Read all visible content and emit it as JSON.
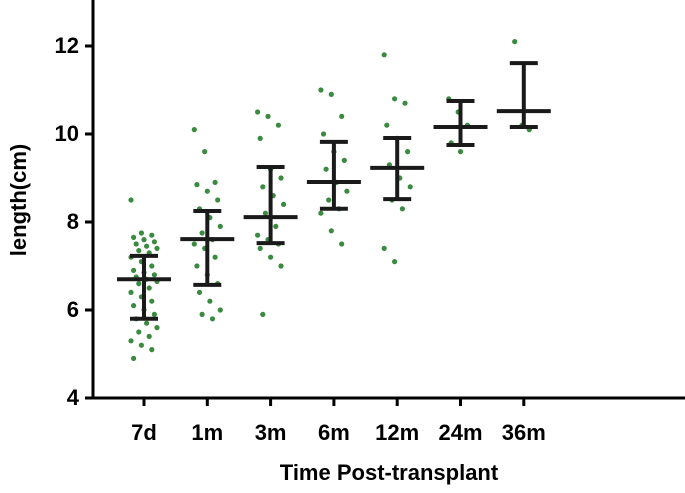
{
  "chart_data": {
    "type": "dot-plot",
    "x_label": "Time Post-transplant",
    "y_label": "length(cm)",
    "ylim": [
      4,
      13
    ],
    "yticks": [
      4,
      6,
      8,
      10,
      12
    ],
    "point_color": "#3a8a3f",
    "bar_color": "#1a1a1a",
    "groups": [
      {
        "name": "7d",
        "center": 6.7,
        "upper": 7.23,
        "lower": 5.8,
        "points": [
          8.5,
          7.75,
          7.7,
          7.65,
          7.6,
          7.55,
          7.5,
          7.45,
          7.4,
          7.35,
          7.3,
          7.2,
          7.1,
          7.0,
          6.9,
          6.85,
          6.8,
          6.75,
          6.7,
          6.65,
          6.6,
          6.5,
          6.4,
          6.3,
          6.2,
          6.1,
          6.0,
          5.9,
          5.8,
          5.7,
          5.6,
          5.5,
          5.4,
          5.3,
          5.2,
          5.1,
          4.9
        ]
      },
      {
        "name": "1m",
        "center": 7.61,
        "upper": 8.25,
        "lower": 6.57,
        "points": [
          10.1,
          9.6,
          8.9,
          8.85,
          8.7,
          8.5,
          8.3,
          8.1,
          7.9,
          7.75,
          7.6,
          7.5,
          7.4,
          7.2,
          7.0,
          6.8,
          6.6,
          6.4,
          6.2,
          6.0,
          5.9,
          5.8
        ]
      },
      {
        "name": "3m",
        "center": 8.11,
        "upper": 9.25,
        "lower": 7.52,
        "points": [
          10.5,
          10.4,
          10.2,
          9.9,
          9.2,
          9.0,
          8.8,
          8.6,
          8.4,
          8.2,
          7.9,
          7.7,
          7.6,
          7.5,
          7.4,
          7.2,
          7.0,
          5.9
        ]
      },
      {
        "name": "6m",
        "center": 8.91,
        "upper": 9.82,
        "lower": 8.3,
        "points": [
          11.0,
          10.9,
          10.4,
          10.0,
          9.6,
          9.4,
          9.2,
          8.9,
          8.7,
          8.5,
          8.3,
          8.2,
          7.8,
          7.5
        ]
      },
      {
        "name": "12m",
        "center": 9.23,
        "upper": 9.91,
        "lower": 8.52,
        "points": [
          11.8,
          10.8,
          10.7,
          10.2,
          9.9,
          9.6,
          9.3,
          9.0,
          8.8,
          8.5,
          8.3,
          7.4,
          7.1
        ]
      },
      {
        "name": "24m",
        "center": 10.16,
        "upper": 10.75,
        "lower": 9.75,
        "points": [
          10.8,
          10.5,
          10.2,
          9.8,
          9.6
        ]
      },
      {
        "name": "36m",
        "center": 10.52,
        "upper": 11.61,
        "lower": 10.16,
        "points": [
          12.1,
          10.2,
          10.1
        ]
      }
    ]
  }
}
